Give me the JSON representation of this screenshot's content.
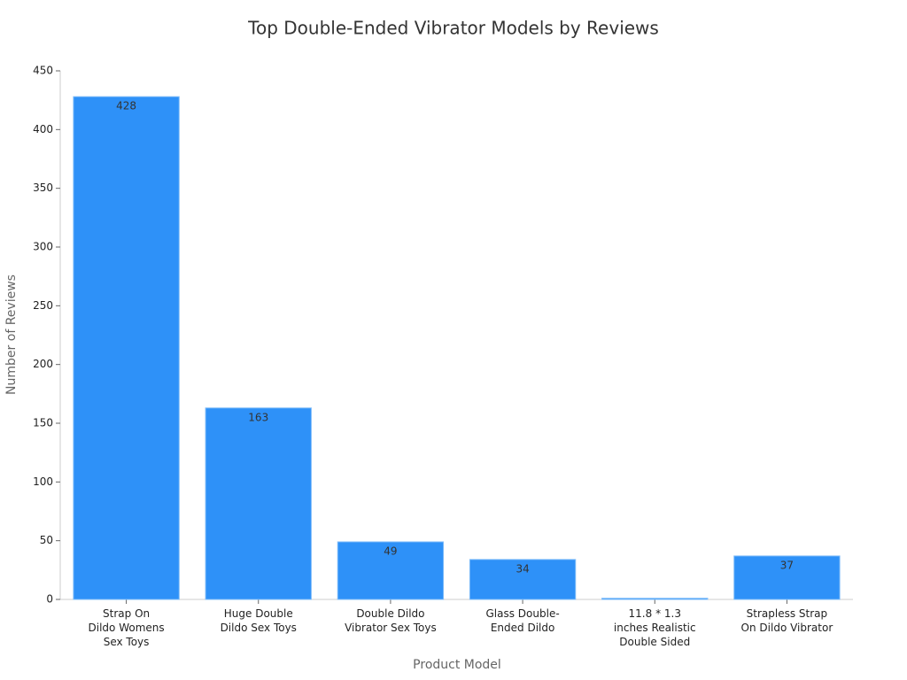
{
  "chart_data": {
    "type": "bar",
    "title": "Top Double-Ended Vibrator Models by Reviews",
    "x_label": "Product Model",
    "y_label": "Number of Reviews",
    "categories": [
      "Strap On\nDildo Womens\nSex Toys",
      "Huge Double\nDildo Sex Toys",
      "Double Dildo\nVibrator Sex Toys",
      "Glass Double-\nEnded Dildo",
      "11.8 * 1.3\ninches Realistic\nDouble Sided",
      "Strapless Strap\nOn Dildo Vibrator"
    ],
    "values": [
      428,
      163,
      49,
      34,
      1,
      37
    ],
    "value_labels": [
      "428",
      "163",
      "49",
      "34",
      null,
      "37"
    ],
    "color": "#2e91f8",
    "ylim": [
      0,
      450
    ],
    "yticks": [
      0,
      50,
      100,
      150,
      200,
      250,
      300,
      350,
      400,
      450
    ],
    "grid": false
  }
}
